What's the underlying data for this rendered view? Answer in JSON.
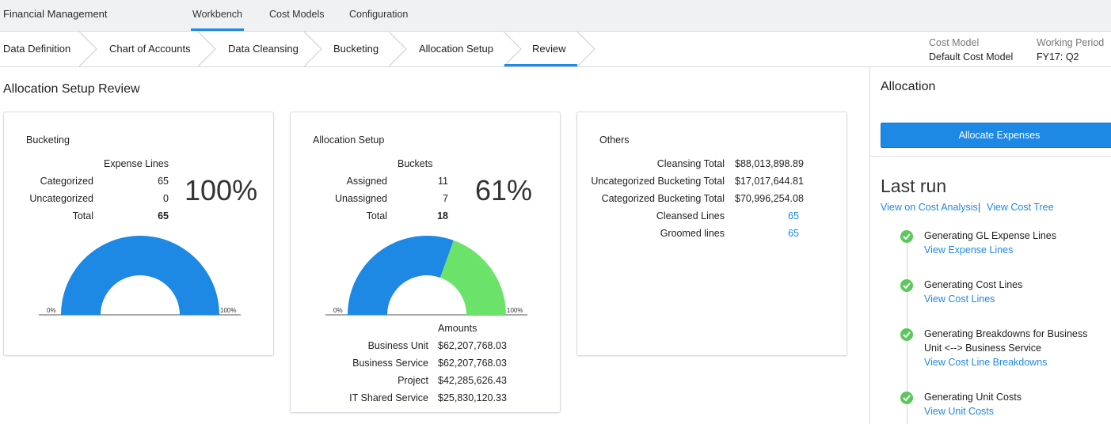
{
  "app": {
    "title": "Financial Management"
  },
  "topnav": {
    "items": [
      "Workbench",
      "Cost Models",
      "Configuration"
    ],
    "active": "Workbench"
  },
  "stepper": {
    "steps": [
      "Data Definition",
      "Chart of Accounts",
      "Data Cleansing",
      "Bucketing",
      "Allocation Setup",
      "Review"
    ],
    "active": "Review"
  },
  "context": {
    "cost_model_label": "Cost Model",
    "cost_model_value": "Default Cost Model",
    "period_label": "Working Period",
    "period_value": "FY17: Q2"
  },
  "page": {
    "title": "Allocation Setup Review"
  },
  "bucketing": {
    "title": "Bucketing",
    "header": "Expense Lines",
    "rows": [
      {
        "label": "Categorized",
        "value": "65"
      },
      {
        "label": "Uncategorized",
        "value": "0"
      },
      {
        "label": "Total",
        "value": "65"
      }
    ],
    "percent": "100%",
    "gauge_min": "0%",
    "gauge_max": "100%",
    "fraction": 1.0
  },
  "allocation_setup": {
    "title": "Allocation Setup",
    "header": "Buckets",
    "rows": [
      {
        "label": "Assigned",
        "value": "11"
      },
      {
        "label": "Unassigned",
        "value": "7"
      },
      {
        "label": "Total",
        "value": "18"
      }
    ],
    "percent": "61%",
    "gauge_min": "0%",
    "gauge_max": "100%",
    "fraction": 0.61,
    "amounts_header": "Amounts",
    "amounts": [
      {
        "label": "Business Unit",
        "value": "$62,207,768.03"
      },
      {
        "label": "Business Service",
        "value": "$62,207,768.03"
      },
      {
        "label": "Project",
        "value": "$42,285,626.43"
      },
      {
        "label": "IT Shared Service",
        "value": "$25,830,120.33"
      }
    ]
  },
  "others": {
    "title": "Others",
    "rows": [
      {
        "label": "Cleansing Total",
        "value": "$88,013,898.89"
      },
      {
        "label": "Uncategorized Bucketing Total",
        "value": "$17,017,644.81"
      },
      {
        "label": "Categorized Bucketing Total",
        "value": "$70,996,254.08"
      },
      {
        "label": "Cleansed Lines",
        "value": "65"
      },
      {
        "label": "Groomed lines",
        "value": "65"
      }
    ]
  },
  "panel": {
    "title": "Allocation",
    "button": "Allocate Expenses",
    "last_run": "Last run",
    "link_analysis": "View on Cost Analysis",
    "separator": "|",
    "link_tree": "View Cost Tree",
    "steps": [
      {
        "title": "Generating GL Expense Lines",
        "link": "View Expense Lines"
      },
      {
        "title": "Generating Cost Lines",
        "link": "View Cost Lines"
      },
      {
        "title_line1": "Generating Breakdowns for Business",
        "title_line2": "Unit <--> Business Service",
        "link": "View Cost Line Breakdowns"
      },
      {
        "title": "Generating Unit Costs",
        "link": "View Unit Costs"
      }
    ]
  },
  "colors": {
    "accent": "#1e88e5",
    "assigned": "#1e88e5",
    "unassigned": "#6be36b",
    "success": "#5cc85c"
  }
}
